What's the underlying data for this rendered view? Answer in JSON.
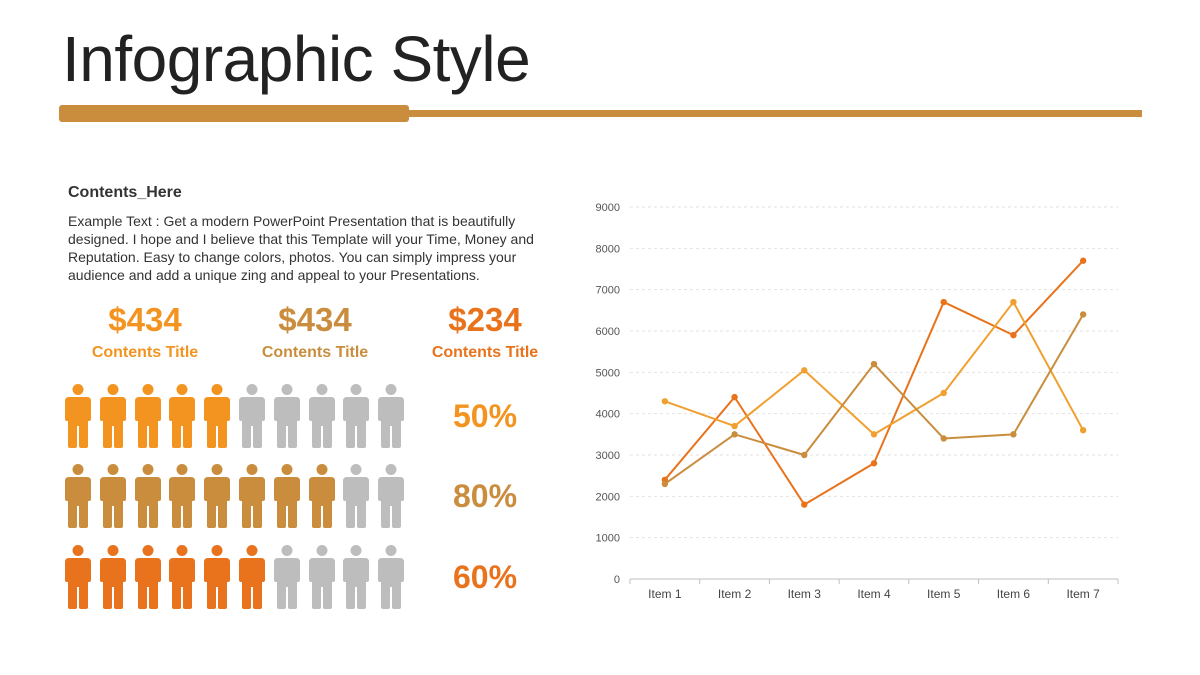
{
  "header": {
    "title": "Infographic Style"
  },
  "content": {
    "heading": "Contents_Here",
    "body": "Example Text : Get a modern PowerPoint  Presentation that is beautifully designed. I hope and I believe that this Template will your Time, Money and Reputation. Easy to change colors, photos. You can simply impress your audience and add a unique zing and appeal to your Presentations."
  },
  "stats": [
    {
      "value": "$434",
      "label": "Contents Title",
      "color": "#f39420"
    },
    {
      "value": "$434",
      "label": "Contents Title",
      "color": "#c98d3d"
    },
    {
      "value": "$234",
      "label": "Contents Title",
      "color": "#e8731c"
    }
  ],
  "people_rows": [
    {
      "filled": 5,
      "total": 10,
      "color": "#f39420",
      "percent_label": "50%"
    },
    {
      "filled": 8,
      "total": 10,
      "color": "#c98d3d",
      "percent_label": "80%"
    },
    {
      "filled": 6,
      "total": 10,
      "color": "#e8731c",
      "percent_label": "60%"
    }
  ],
  "inactive_color": "#bdbdbd",
  "chart_data": {
    "type": "line",
    "categories": [
      "Item 1",
      "Item 2",
      "Item 3",
      "Item 4",
      "Item 5",
      "Item 6",
      "Item 7"
    ],
    "series": [
      {
        "values": [
          2400,
          4400,
          1800,
          2800,
          6700,
          5900,
          7700
        ],
        "color": "#e8731c"
      },
      {
        "values": [
          4300,
          3700,
          5050,
          3500,
          4500,
          6700,
          3600
        ],
        "color": "#f0a030"
      },
      {
        "values": [
          2300,
          3500,
          3000,
          5200,
          3400,
          3500,
          6400
        ],
        "color": "#c98d3d"
      }
    ],
    "ylim": [
      0,
      9000
    ],
    "yticks": [
      0,
      1000,
      2000,
      3000,
      4000,
      5000,
      6000,
      7000,
      8000,
      9000
    ],
    "grid": true,
    "legend": "none"
  }
}
